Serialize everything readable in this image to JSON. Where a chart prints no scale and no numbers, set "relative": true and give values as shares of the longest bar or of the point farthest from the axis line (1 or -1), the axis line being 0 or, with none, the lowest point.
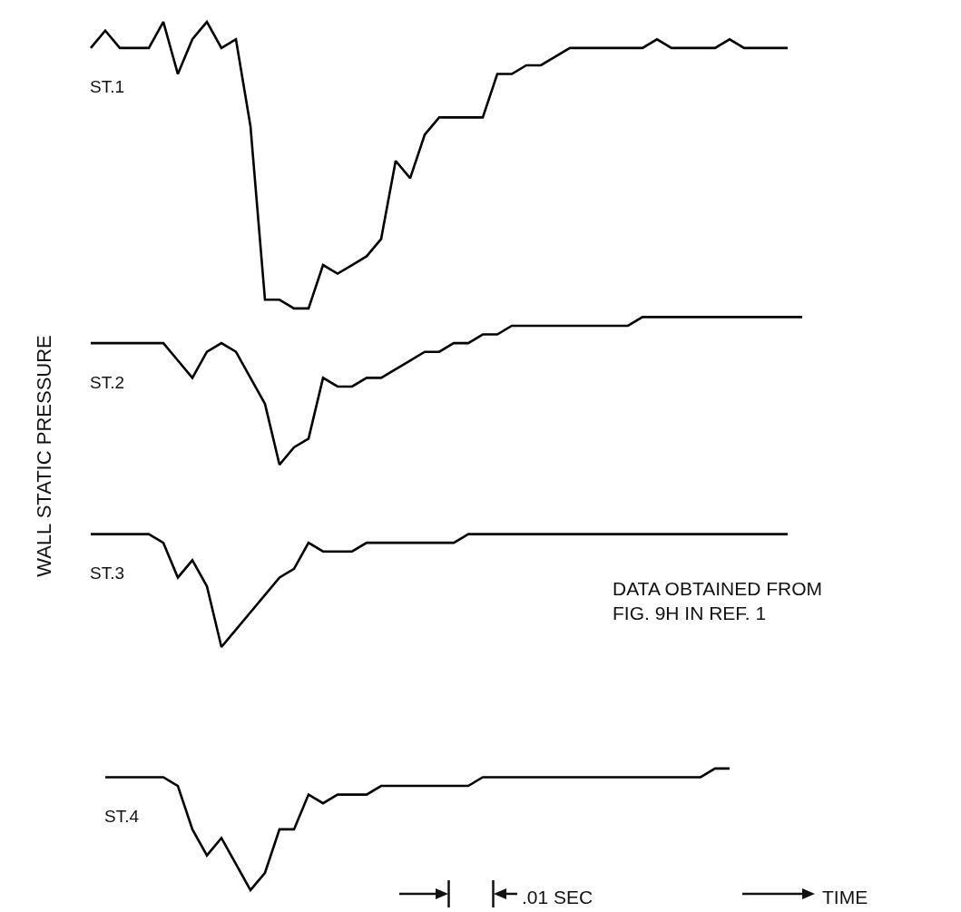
{
  "chart_data": {
    "type": "line",
    "relative": true,
    "ylabel": "WALL STATIC PRESSURE",
    "legend": false,
    "grid": false,
    "marker": "none",
    "line_style": "solid",
    "categories": [
      null,
      null,
      null,
      null,
      null,
      null,
      null,
      null,
      null,
      null,
      null,
      null,
      null,
      null,
      null,
      null,
      null,
      null,
      null,
      null,
      null,
      null,
      null,
      null,
      null,
      null,
      null,
      null,
      null,
      null,
      null,
      null,
      null,
      null,
      null,
      null,
      null,
      null,
      null,
      null,
      null,
      null,
      null,
      null,
      null,
      null,
      null,
      null,
      null,
      null,
      null
    ],
    "series": [
      {
        "name": "ST.1",
        "color": "#000000",
        "values": [
          0.97,
          0.99,
          0.97,
          0.97,
          0.97,
          1.0,
          0.94,
          0.98,
          1.0,
          0.97,
          0.98,
          0.88,
          0.68,
          0.68,
          0.67,
          0.67,
          0.72,
          0.71,
          0.72,
          0.73,
          0.75,
          0.84,
          0.82,
          0.87,
          0.89,
          0.89,
          0.89,
          0.89,
          0.94,
          0.94,
          0.95,
          0.95,
          0.96,
          0.97,
          0.97,
          0.97,
          0.97,
          0.97,
          0.97,
          0.98,
          0.97,
          0.97,
          0.97,
          0.97,
          0.98,
          0.97,
          0.97,
          0.97,
          0.97,
          null,
          null
        ]
      },
      {
        "name": "ST.2",
        "color": "#000000",
        "values": [
          0.63,
          0.63,
          0.63,
          0.63,
          0.63,
          0.63,
          0.61,
          0.59,
          0.62,
          0.63,
          0.62,
          0.59,
          0.56,
          0.49,
          0.51,
          0.52,
          0.59,
          0.58,
          0.58,
          0.59,
          0.59,
          0.6,
          0.61,
          0.62,
          0.62,
          0.63,
          0.63,
          0.64,
          0.64,
          0.65,
          0.65,
          0.65,
          0.65,
          0.65,
          0.65,
          0.65,
          0.65,
          0.65,
          0.66,
          0.66,
          0.66,
          0.66,
          0.66,
          0.66,
          0.66,
          0.66,
          0.66,
          0.66,
          0.66,
          0.66,
          null
        ]
      },
      {
        "name": "ST.3",
        "color": "#000000",
        "values": [
          0.41,
          0.41,
          0.41,
          0.41,
          0.41,
          0.4,
          0.36,
          0.38,
          0.35,
          0.28,
          0.3,
          0.32,
          0.34,
          0.36,
          0.37,
          0.4,
          0.39,
          0.39,
          0.39,
          0.4,
          0.4,
          0.4,
          0.4,
          0.4,
          0.4,
          0.4,
          0.41,
          0.41,
          0.41,
          0.41,
          0.41,
          0.41,
          0.41,
          0.41,
          0.41,
          0.41,
          0.41,
          0.41,
          0.41,
          0.41,
          0.41,
          0.41,
          0.41,
          0.41,
          0.41,
          0.41,
          0.41,
          0.41,
          0.41,
          null,
          null
        ]
      },
      {
        "name": "ST.4",
        "color": "#000000",
        "values": [
          null,
          0.13,
          0.13,
          0.13,
          0.13,
          0.13,
          0.12,
          0.07,
          0.04,
          0.06,
          0.03,
          0,
          0.02,
          0.07,
          0.07,
          0.11,
          0.1,
          0.11,
          0.11,
          0.11,
          0.12,
          0.12,
          0.12,
          0.12,
          0.12,
          0.12,
          0.12,
          0.13,
          0.13,
          0.13,
          0.13,
          0.13,
          0.13,
          0.13,
          0.13,
          0.13,
          0.13,
          0.13,
          0.13,
          0.13,
          0.13,
          0.13,
          0.13,
          0.14,
          0.14,
          null,
          null,
          null,
          null,
          null,
          null
        ]
      }
    ],
    "annotations": [
      "DATA OBTAINED FROM\nFIG. 9H IN REF. 1",
      ".01 SEC",
      "TIME"
    ]
  }
}
